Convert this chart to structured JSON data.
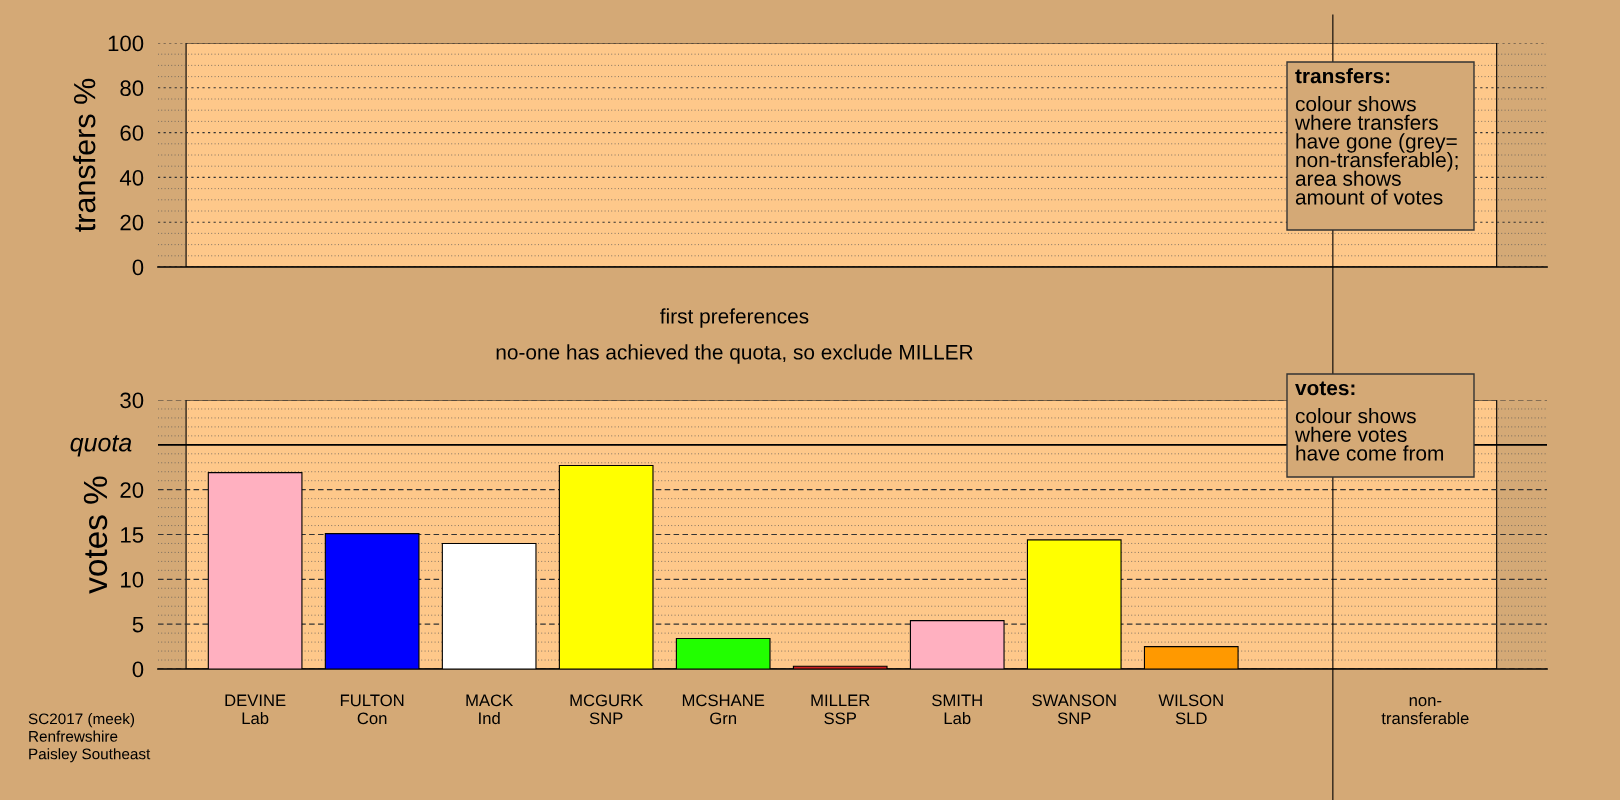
{
  "chart_data": [
    {
      "type": "bar",
      "ylabel": "transfers %",
      "categories": [
        null,
        null,
        null,
        null,
        null,
        null,
        null,
        null,
        null,
        null,
        null
      ],
      "values": [
        null,
        null,
        null,
        null,
        null,
        null,
        null,
        null,
        null,
        null,
        null
      ],
      "ylim": [
        0,
        100
      ],
      "yticks": [
        0,
        20,
        40,
        60,
        80,
        100
      ],
      "grid": "y",
      "tick_labels": "y",
      "annotations": [
        "transfers:\ncolour shows\nwhere transfers\nhave gone (grey=\nnon-transferable);\narea shows\namount of votes"
      ]
    },
    {
      "type": "bar",
      "title": "first preferences",
      "subtitle": "no-one has achieved the quota, so exclude MILLER",
      "ylabel": "votes %",
      "categories": [
        "DEVINE\nLab",
        "FULTON\nCon",
        "MACK\nInd",
        "MCGURK\nSNP",
        "MCSHANE\nGrn",
        "MILLER\nSSP",
        "SMITH\nLab",
        "SWANSON\nSNP",
        "WILSON\nSLD",
        null,
        "non-\ntransferable"
      ],
      "values": [
        21.9,
        15.1,
        14.0,
        22.7,
        3.4,
        0.3,
        5.4,
        14.4,
        2.5,
        null,
        null
      ],
      "colors": [
        "#ffb0c0",
        "#0000ff",
        "#ffffff",
        "#ffff00",
        "#22ff00",
        "#cc2020",
        "#ffb0c0",
        "#ffff00",
        "#ff9900",
        "#888888",
        "#888888"
      ],
      "ylim": [
        0,
        30
      ],
      "yticks": [
        0,
        5,
        10,
        15,
        20,
        30
      ],
      "grid": "y",
      "ref_lines": [
        {
          "axis": "y",
          "value": 25,
          "label": "quota",
          "color": "#000000"
        }
      ],
      "annotations": [
        "votes:\ncolour shows\nwhere votes\nhave come from",
        "SC2017 (meek)\nRenfrewshire\nPaisley Southeast"
      ]
    }
  ]
}
